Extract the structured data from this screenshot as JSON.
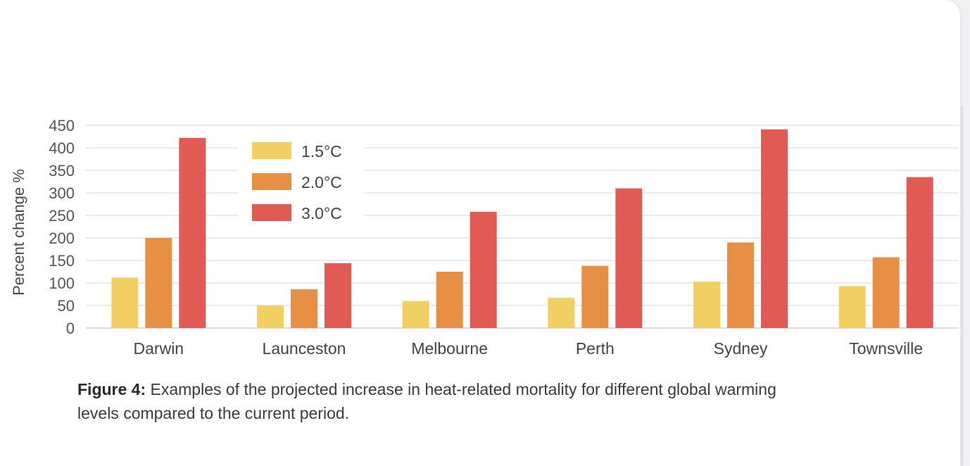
{
  "chart_data": {
    "type": "bar",
    "ylabel": "Percent change %",
    "ylim": [
      0,
      450
    ],
    "yticks": [
      0,
      50,
      100,
      150,
      200,
      250,
      300,
      350,
      400,
      450
    ],
    "grid": true,
    "legend_position": "top-left",
    "categories": [
      "Darwin",
      "Launceston",
      "Melbourne",
      "Perth",
      "Sydney",
      "Townsville"
    ],
    "series": [
      {
        "name": "1.5°C",
        "color": "#f2cf63",
        "values": [
          112,
          50,
          60,
          67,
          103,
          93
        ]
      },
      {
        "name": "2.0°C",
        "color": "#e68f45",
        "values": [
          200,
          86,
          125,
          138,
          190,
          157
        ]
      },
      {
        "name": "3.0°C",
        "color": "#e05b53",
        "values": [
          422,
          144,
          258,
          310,
          441,
          335
        ]
      }
    ]
  },
  "caption": {
    "label": "Figure 4:",
    "text": "Examples of the projected increase in heat-related mortality for different global warming levels compared to the current period."
  }
}
